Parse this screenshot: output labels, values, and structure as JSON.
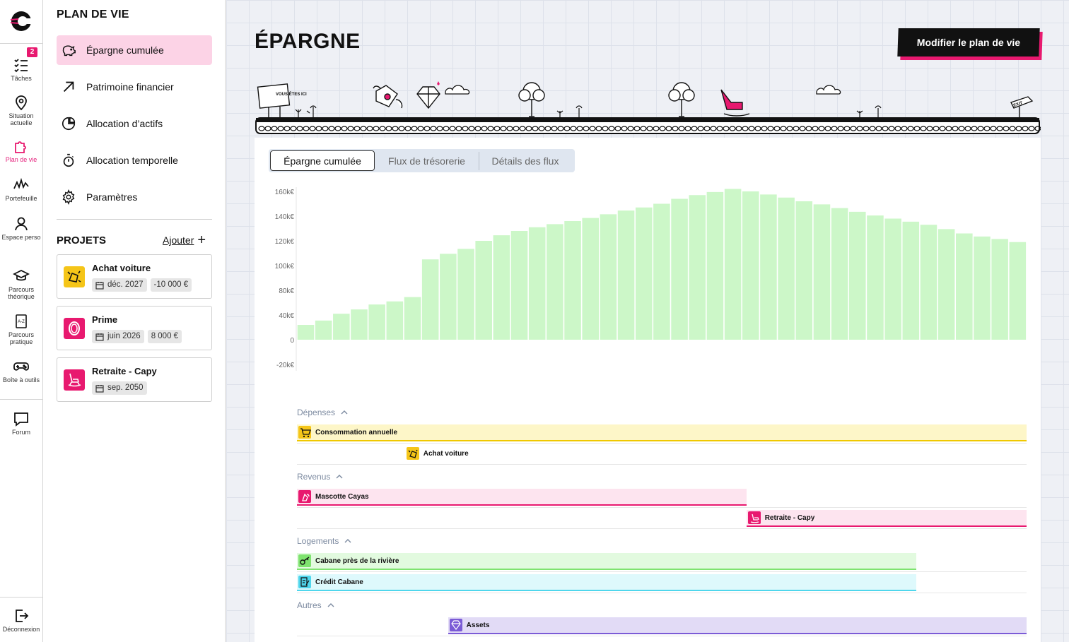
{
  "rail": {
    "items": [
      {
        "label": "Tâches",
        "icon": "checklist-icon",
        "badge": "2"
      },
      {
        "label": "Situation actuelle",
        "icon": "location-pin-icon"
      },
      {
        "label": "Plan de vie",
        "icon": "puzzle-icon",
        "active": true
      },
      {
        "label": "Portefeuille",
        "icon": "wave-chart-icon"
      },
      {
        "label": "Espace perso",
        "icon": "user-icon"
      },
      {
        "label": "Parcours théorique",
        "icon": "graduation-cap-icon"
      },
      {
        "label": "Parcours pratique",
        "icon": "dictionary-icon"
      },
      {
        "label": "Boîte à outils",
        "icon": "gamepad-icon"
      },
      {
        "label": "Forum",
        "icon": "chat-bubble-icon"
      }
    ],
    "logout": "Déconnexion"
  },
  "sidebar": {
    "title": "PLAN DE VIE",
    "nav": [
      {
        "label": "Épargne cumulée",
        "icon": "piggy-bank-icon",
        "active": true
      },
      {
        "label": "Patrimoine financier",
        "icon": "arrow-up-right-icon"
      },
      {
        "label": "Allocation d’actifs",
        "icon": "pie-chart-icon"
      },
      {
        "label": "Allocation  temporelle",
        "icon": "stopwatch-icon"
      },
      {
        "label": "Paramètres",
        "icon": "gear-icon"
      }
    ],
    "projects_title": "PROJETS",
    "add_label": "Ajouter",
    "projects": [
      {
        "name": "Achat voiture",
        "date": "déc. 2027",
        "amount": "-10 000 €",
        "color": "#f5c518",
        "icon": "car-crash-icon"
      },
      {
        "name": "Prime",
        "date": "juin 2026",
        "amount": "8 000 €",
        "color": "#e8196f",
        "icon": "ring-icon"
      },
      {
        "name": "Retraite - Capy",
        "date": "sep. 2050",
        "amount": "",
        "color": "#e8196f",
        "icon": "rocking-chair-icon"
      }
    ]
  },
  "main": {
    "title": "ÉPARGNE",
    "modify_button": "Modifier le plan de vie",
    "scene": {
      "sign_text": "VOUS ÊTES ICI",
      "exit_text": "EXIT"
    },
    "tabs": [
      "Épargne cumulée",
      "Flux de trésorerie",
      "Détails des flux"
    ]
  },
  "chart_data": {
    "type": "bar",
    "title": "",
    "ylim": [
      -20000,
      160000
    ],
    "yticks": [
      "160k€",
      "140k€",
      "120k€",
      "100k€",
      "80k€",
      "40k€",
      "0",
      "-20k€"
    ],
    "values": [
      12000,
      15500,
      21000,
      24500,
      28500,
      31000,
      34500,
      65000,
      69500,
      73500,
      80000,
      84500,
      88000,
      91000,
      93500,
      96000,
      98500,
      101500,
      104500,
      107000,
      110000,
      114000,
      117000,
      119500,
      122000,
      120000,
      117500,
      115000,
      112000,
      109500,
      106500,
      103500,
      100500,
      98000,
      95500,
      93000,
      89500,
      86000,
      83500,
      81500,
      79000
    ],
    "color": "#ccf7c8",
    "grid": false
  },
  "flows": {
    "groups": [
      {
        "label": "Dépenses",
        "rows": [
          {
            "label": "Consommation annuelle",
            "start": 0.0,
            "end": 1.0,
            "bg": "#fdf6c8",
            "line": "#f0c800",
            "icon": "cart-icon",
            "iconbg": "#f5c518"
          },
          {
            "label": "Achat voiture",
            "start": 0.148,
            "end": 0.148,
            "bg": "transparent",
            "line": "transparent",
            "icon": "car-crash-icon",
            "iconbg": "#f5c518"
          }
        ]
      },
      {
        "label": "Revenus",
        "rows": [
          {
            "label": "Mascotte Cayas",
            "start": 0.0,
            "end": 0.616,
            "bg": "#fde4ef",
            "line": "#e8196f",
            "icon": "mascot-icon",
            "iconbg": "#e8196f"
          },
          {
            "label": "Retraite - Capy",
            "start": 0.616,
            "end": 1.0,
            "bg": "#fde4ef",
            "line": "#e8196f",
            "icon": "rocking-chair-icon",
            "iconbg": "#e8196f"
          }
        ]
      },
      {
        "label": "Logements",
        "rows": [
          {
            "label": "Cabane près de la rivière",
            "start": 0.0,
            "end": 0.849,
            "bg": "#e2fadf",
            "line": "#7fe36f",
            "icon": "key-icon",
            "iconbg": "#7fe36f"
          },
          {
            "label": "Crédit Cabane",
            "start": 0.0,
            "end": 0.849,
            "bg": "#def9fc",
            "line": "#4fd6ec",
            "icon": "contract-icon",
            "iconbg": "#4fd6ec"
          }
        ]
      },
      {
        "label": "Autres",
        "rows": [
          {
            "label": "Assets",
            "start": 0.207,
            "end": 1.0,
            "bg": "#e2dbf6",
            "line": "#7b5bd6",
            "icon": "diamond-icon",
            "iconbg": "#7b5bd6"
          }
        ]
      }
    ]
  }
}
